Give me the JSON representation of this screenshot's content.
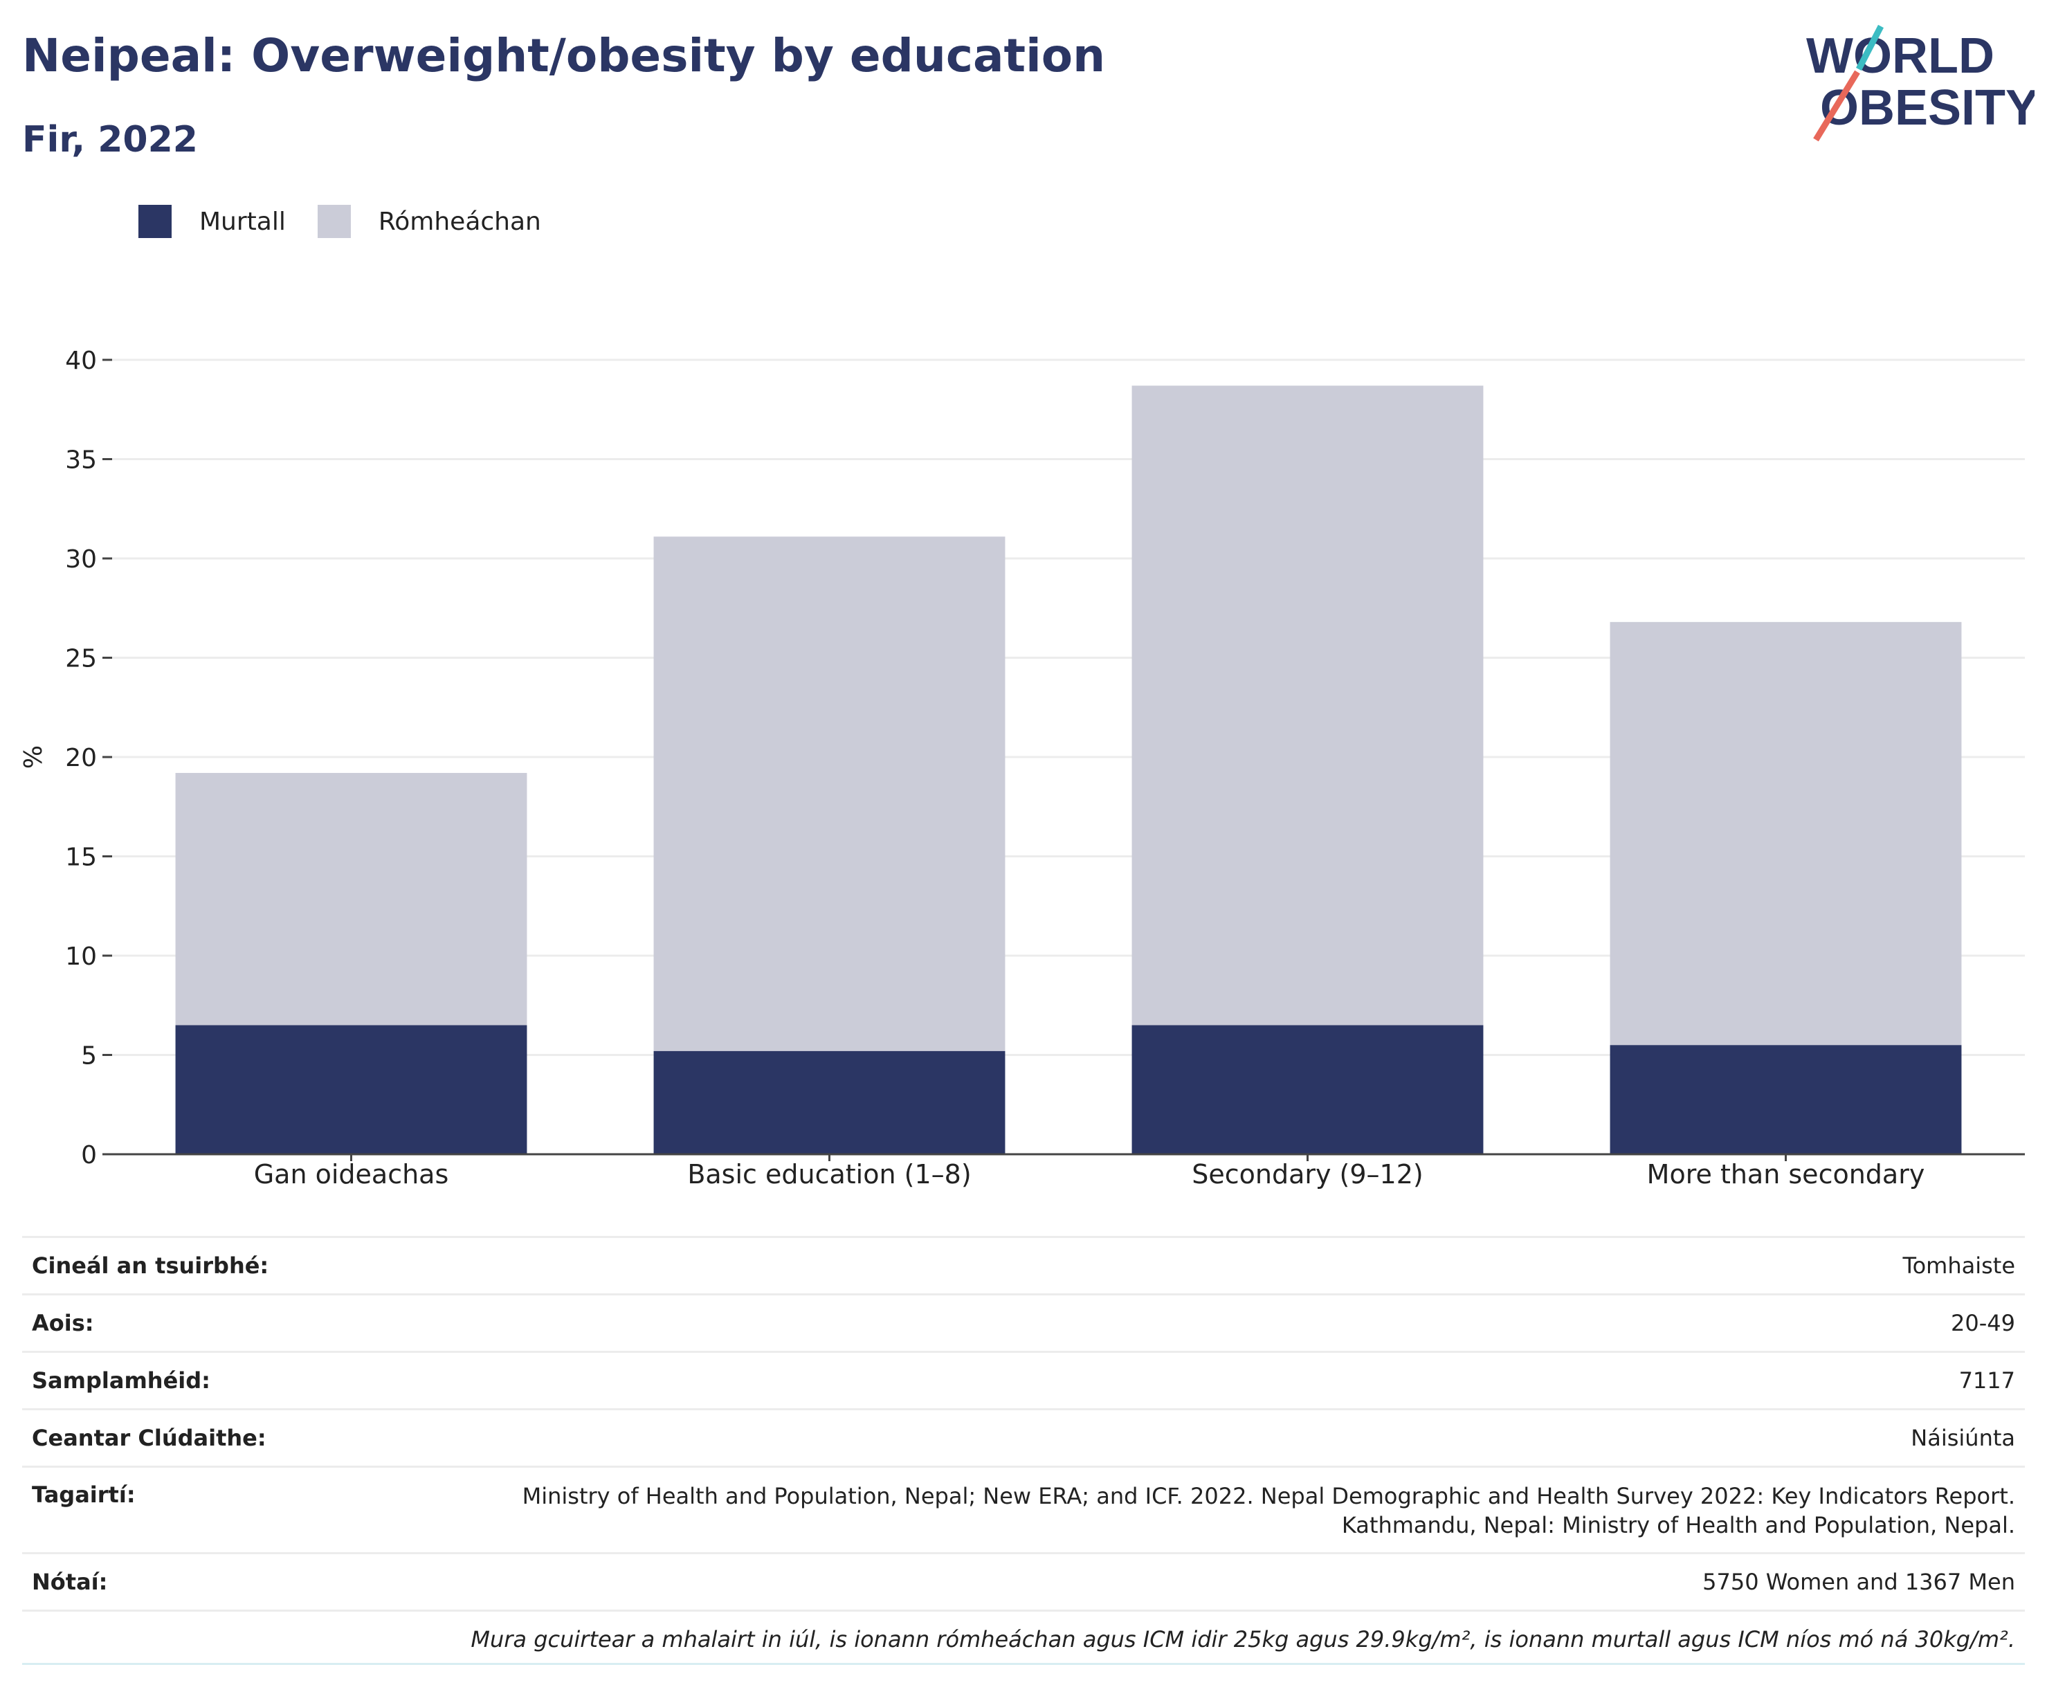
{
  "header": {
    "title": "Neipeal: Overweight/obesity by education",
    "subtitle": "Fir, 2022"
  },
  "logo": {
    "line1": "WORLD",
    "line2": "OBESITY",
    "accent_colors": [
      "#3cbcc3",
      "#e8685a"
    ],
    "brand_color": "#2b3664"
  },
  "legend": [
    {
      "label": "Murtall",
      "color": "#2b3664"
    },
    {
      "label": "Rómheáchan",
      "color": "#cbccd8"
    }
  ],
  "chart_data": {
    "type": "bar",
    "stacked": true,
    "categories": [
      "Gan oideachas",
      "Basic education (1–8)",
      "Secondary (9–12)",
      "More than secondary"
    ],
    "series": [
      {
        "name": "Murtall",
        "color": "#2b3664",
        "values": [
          6.5,
          5.2,
          6.5,
          5.5
        ]
      },
      {
        "name": "Rómheáchan",
        "color": "#cbccd8",
        "values": [
          12.7,
          25.9,
          32.2,
          21.3
        ]
      }
    ],
    "ylabel": "%",
    "ylim": [
      0,
      40
    ],
    "yticks": [
      0,
      5,
      10,
      15,
      20,
      25,
      30,
      35,
      40
    ],
    "grid": true,
    "legend_position": "top-left"
  },
  "info_table": [
    {
      "label": "Cineál an tsuirbhé:",
      "value": "Tomhaiste"
    },
    {
      "label": "Aois:",
      "value": "20-49"
    },
    {
      "label": "Samplamhéid:",
      "value": "7117"
    },
    {
      "label": "Ceantar Clúdaithe:",
      "value": "Náisiúnta"
    },
    {
      "label": "Tagairtí:",
      "value": "Ministry of Health and Population, Nepal; New ERA; and ICF. 2022. Nepal Demographic and Health Survey 2022: Key Indicators Report.",
      "value2": "Kathmandu, Nepal: Ministry of Health and Population, Nepal."
    },
    {
      "label": "Nótaí:",
      "value": "5750 Women and 1367 Men"
    }
  ],
  "footnote": "Mura gcuirtear a mhalairt in iúl, is ionann rómheáchan agus ICM idir 25kg agus 29.9kg/m², is ionann murtall agus ICM níos mó ná 30kg/m²."
}
